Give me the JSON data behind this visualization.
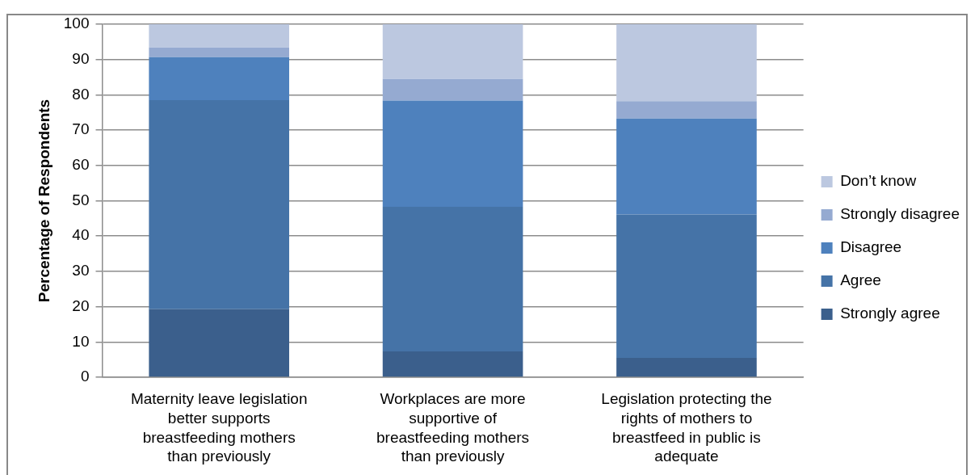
{
  "chart_data": {
    "type": "bar",
    "stacked": true,
    "ylabel": "Percentage of Respondents",
    "categories": [
      "Maternity leave legislation better supports breastfeeding mothers than previously",
      "Workplaces are more supportive of breastfeeding mothers than previously",
      "Legislation protecting the rights of mothers to breastfeed in public is adequate"
    ],
    "series": [
      {
        "name": "Strongly agree",
        "color": "#3b5f8c",
        "values": [
          19.3,
          7.3,
          5.5
        ]
      },
      {
        "name": "Agree",
        "color": "#4573a7",
        "values": [
          59.2,
          41.0,
          40.6
        ]
      },
      {
        "name": "Disagree",
        "color": "#4e81bd",
        "values": [
          12.2,
          30.1,
          27.2
        ]
      },
      {
        "name": "Strongly disagree",
        "color": "#95aad1",
        "values": [
          2.7,
          6.1,
          4.9
        ]
      },
      {
        "name": "Don’t know",
        "color": "#bcc8e0",
        "values": [
          6.6,
          15.5,
          21.8
        ]
      }
    ],
    "ylim": [
      0,
      100
    ],
    "yticks": [
      0,
      10,
      20,
      30,
      40,
      50,
      60,
      70,
      80,
      90,
      100
    ],
    "grid": "y",
    "legend": "right"
  }
}
